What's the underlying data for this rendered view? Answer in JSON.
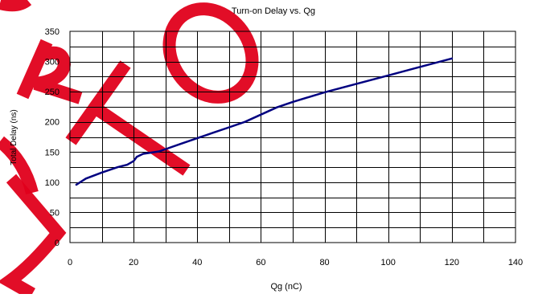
{
  "chart_data": {
    "type": "line",
    "title": "Turn-on Delay vs. Qg",
    "xlabel": "Qg (nC)",
    "ylabel": "Total Delay (ns)",
    "xlim": [
      0,
      140
    ],
    "ylim": [
      0,
      350
    ],
    "x_ticks": [
      0,
      20,
      40,
      60,
      80,
      100,
      120,
      140
    ],
    "y_ticks": [
      0,
      50,
      100,
      150,
      200,
      250,
      300,
      350
    ],
    "grid": true,
    "series": [
      {
        "color": "#000080",
        "points": [
          [
            2,
            96
          ],
          [
            5,
            106
          ],
          [
            10,
            116
          ],
          [
            15,
            125
          ],
          [
            18,
            129
          ],
          [
            20,
            135
          ],
          [
            21,
            142
          ],
          [
            23,
            147
          ],
          [
            28,
            151
          ],
          [
            35,
            164
          ],
          [
            45,
            182
          ],
          [
            50,
            191
          ],
          [
            55,
            200
          ],
          [
            60,
            212
          ],
          [
            65,
            224
          ],
          [
            70,
            233
          ],
          [
            75,
            241
          ],
          [
            80,
            249
          ],
          [
            90,
            263
          ],
          [
            100,
            277
          ],
          [
            110,
            291
          ],
          [
            120,
            305
          ]
        ]
      }
    ]
  },
  "watermark": {
    "text": "ARTOS",
    "color": "#e0001b"
  }
}
